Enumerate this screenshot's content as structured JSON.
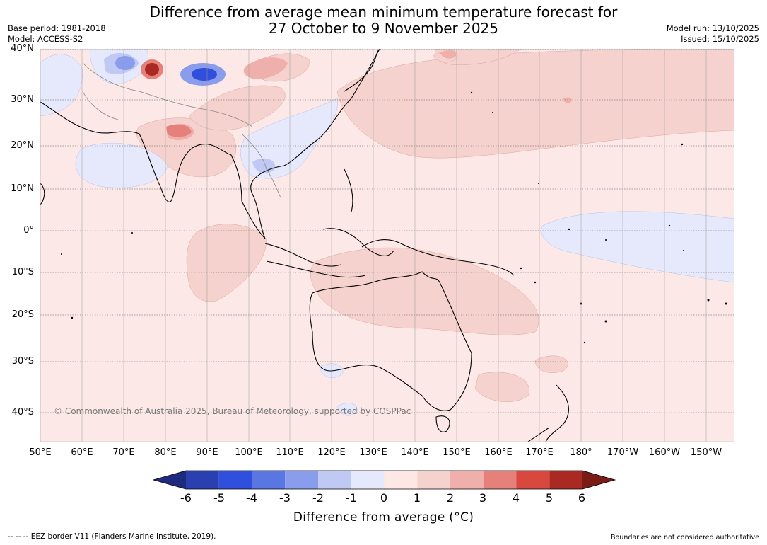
{
  "title_line1": "Difference from average mean minimum temperature forecast for",
  "title_line2": "27 October to 9 November 2025",
  "base_period": "Base period: 1981-2018",
  "model": "Model: ACCESS-S2",
  "model_run": "Model run: 13/10/2025",
  "issued": "Issued: 15/10/2025",
  "lat_labels": [
    "40°N",
    "30°N",
    "20°N",
    "10°N",
    "0°",
    "10°S",
    "20°S",
    "30°S",
    "40°S"
  ],
  "lon_labels": [
    "50°E",
    "60°E",
    "70°E",
    "80°E",
    "90°E",
    "100°E",
    "110°E",
    "120°E",
    "130°E",
    "140°E",
    "150°E",
    "160°E",
    "170°E",
    "180°",
    "170°W",
    "160°W",
    "150°W"
  ],
  "copyright": "© Commonwealth of Australia 2025, Bureau of Meteorology, supported by COSPPac",
  "colorbar": {
    "ticks": [
      "-6",
      "-5",
      "-4",
      "-3",
      "-2",
      "-1",
      "0",
      "1",
      "2",
      "3",
      "4",
      "5",
      "6"
    ],
    "colors": [
      "#1d2a7e",
      "#2a3fb0",
      "#2f4fdc",
      "#5a76e3",
      "#8a9ded",
      "#c0c8f4",
      "#e6e9fb",
      "#fde8e6",
      "#f6d2cf",
      "#efafaa",
      "#e6807a",
      "#d9483f",
      "#aa2a23",
      "#7a1c16"
    ],
    "label": "Difference from average (°C)"
  },
  "footer_left": "--  --  -- EEZ border V11 (Flanders Marine Institute, 2019).",
  "footer_right": "Boundaries are not considered authoritative"
}
